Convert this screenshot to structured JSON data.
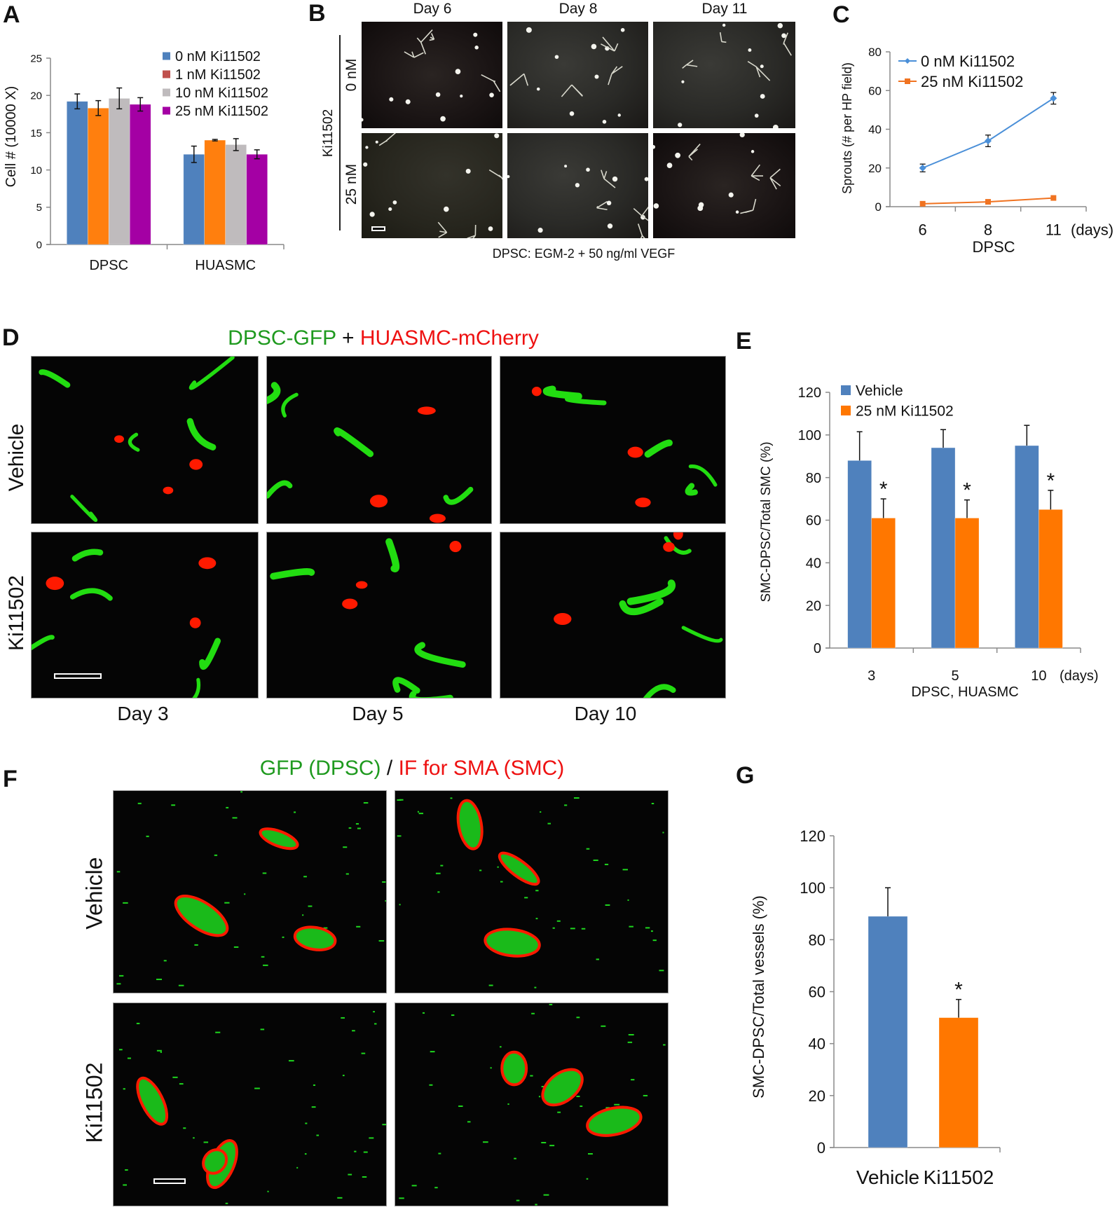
{
  "panel_letters": {
    "a": "A",
    "b": "B",
    "c": "C",
    "d": "D",
    "e": "E",
    "f": "F",
    "g": "G"
  },
  "panel_b": {
    "days": [
      "Day 6",
      "Day 8",
      "Day 11"
    ],
    "group_label": "Ki11502",
    "rows": [
      "0 nM",
      "25 nM"
    ],
    "caption": "DPSC: EGM-2 + 50 ng/ml VEGF"
  },
  "panel_d": {
    "title_green": "DPSC-GFP",
    "title_sep": "+",
    "title_red": "HUASMC-mCherry",
    "rows": [
      "Vehicle",
      "Ki11502"
    ],
    "days": [
      "Day 3",
      "Day 5",
      "Day 10"
    ]
  },
  "panel_f": {
    "title_green": "GFP (DPSC)",
    "title_sep": "/",
    "title_red": "IF for SMA (SMC)",
    "rows": [
      "Vehicle",
      "Ki11502"
    ]
  },
  "chart_data": [
    {
      "id": "A",
      "type": "bar",
      "categories": [
        "DPSC",
        "HUASMC"
      ],
      "series": [
        {
          "name": "0 nM Ki11502",
          "color": "#4f81bd",
          "values": [
            19.2,
            12.1
          ],
          "errors": [
            1.0,
            1.1
          ]
        },
        {
          "name": "1 nM Ki11502",
          "color": "#ff7f0e",
          "legend_color": "#c0504d",
          "values": [
            18.3,
            14.0
          ],
          "errors": [
            1.0,
            0.1
          ]
        },
        {
          "name": "10 nM Ki11502",
          "color": "#bfbbbd",
          "values": [
            19.6,
            13.4
          ],
          "errors": [
            1.4,
            0.8
          ]
        },
        {
          "name": "25 nM Ki11502",
          "color": "#a400a4",
          "values": [
            18.8,
            12.1
          ],
          "errors": [
            0.9,
            0.6
          ]
        }
      ],
      "xlabel": "",
      "ylabel": "Cell # (10000 X)",
      "ylim": [
        0,
        25
      ],
      "yticks": [
        0,
        5,
        10,
        15,
        20,
        25
      ],
      "error_bars": "both",
      "legend": "top-right",
      "grid": false
    },
    {
      "id": "C",
      "type": "line",
      "x": [
        "6",
        "8",
        "11"
      ],
      "x_unit": "(days)",
      "series": [
        {
          "name": "0 nM Ki11502",
          "color": "#4a8fd8",
          "marker": "diamond",
          "values": [
            20,
            34,
            56
          ],
          "errors": [
            2,
            3,
            3
          ]
        },
        {
          "name": "25 nM Ki11502",
          "color": "#f07321",
          "marker": "square",
          "values": [
            1.5,
            2.5,
            4.5
          ],
          "errors": [
            0,
            0,
            0
          ]
        }
      ],
      "xlabel": "DPSC",
      "ylabel": "Sprouts (# per HP field)",
      "ylim": [
        0,
        80
      ],
      "yticks": [
        0,
        20,
        40,
        60,
        80
      ],
      "legend": "top-left",
      "grid": false
    },
    {
      "id": "E",
      "type": "bar",
      "categories": [
        "3",
        "5",
        "10"
      ],
      "x_unit": "(days)",
      "series": [
        {
          "name": "Vehicle",
          "color": "#4f81bd",
          "values": [
            88,
            94,
            95
          ],
          "errors": [
            13.5,
            8.5,
            9.5
          ],
          "significance": [
            "",
            "",
            ""
          ]
        },
        {
          "name": "25 nM Ki11502",
          "color": "#ff7700",
          "values": [
            61,
            61,
            65
          ],
          "errors": [
            9,
            8.5,
            9
          ],
          "significance": [
            "*",
            "*",
            "*"
          ]
        }
      ],
      "xlabel": "DPSC, HUASMC",
      "ylabel": "SMC-DPSC/Total SMC (%)",
      "ylim": [
        0,
        120
      ],
      "yticks": [
        0,
        20,
        40,
        60,
        80,
        100,
        120
      ],
      "error_bars": "up",
      "legend": "top-left",
      "grid": false
    },
    {
      "id": "G",
      "type": "bar",
      "categories": [
        "Vehicle",
        "Ki11502"
      ],
      "series": [
        {
          "name": "SMC-DPSC/Total vessels",
          "colors": [
            "#4f81bd",
            "#ff7700"
          ],
          "values": [
            89,
            50
          ],
          "errors": [
            11,
            7
          ],
          "significance": [
            "",
            "*"
          ]
        }
      ],
      "xlabel": "",
      "ylabel": "SMC-DPSC/Total vessels (%)",
      "ylim": [
        0,
        120
      ],
      "yticks": [
        0,
        20,
        40,
        60,
        80,
        100,
        120
      ],
      "error_bars": "up",
      "legend": "none",
      "grid": false
    }
  ]
}
